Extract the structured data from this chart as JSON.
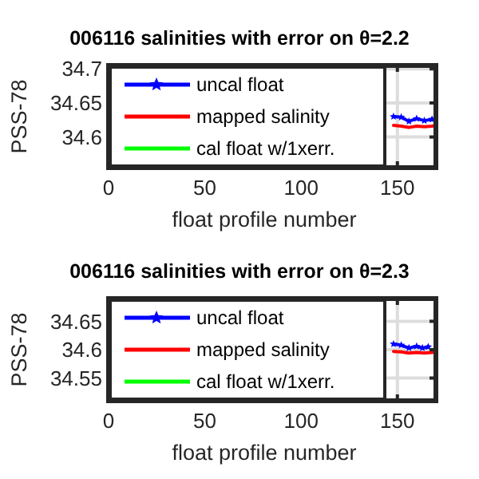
{
  "chart_data": [
    {
      "type": "line",
      "title": "006116 salinities with error on θ=2.2",
      "xlabel": "float profile number",
      "ylabel": "PSS-78",
      "xlim": [
        0,
        170
      ],
      "ylim": [
        34.555,
        34.705
      ],
      "xticks": [
        0,
        50,
        100,
        150
      ],
      "yticks": [
        34.6,
        34.65,
        34.7
      ],
      "grid": true,
      "legend": "left",
      "series": [
        {
          "name": "uncal float",
          "color": "#0000ff",
          "marker": "star",
          "x": [
            148,
            152,
            156,
            160,
            164,
            168
          ],
          "values": [
            34.63,
            34.629,
            34.623,
            34.627,
            34.624,
            34.626
          ]
        },
        {
          "name": "mapped salinity",
          "color": "#ff0000",
          "x": [
            148,
            152,
            156,
            160,
            164,
            168,
            170
          ],
          "values": [
            34.617,
            34.616,
            34.614,
            34.616,
            34.615,
            34.616,
            34.617
          ]
        },
        {
          "name": "cal float w/1xerr.",
          "color": "#00ff00"
        }
      ]
    },
    {
      "type": "line",
      "title": "006116 salinities with error on θ=2.3",
      "xlabel": "float profile number",
      "ylabel": "PSS-78",
      "xlim": [
        0,
        170
      ],
      "ylim": [
        34.51,
        34.69
      ],
      "xticks": [
        0,
        50,
        100,
        150
      ],
      "yticks": [
        34.55,
        34.6,
        34.65
      ],
      "grid": true,
      "legend": "left",
      "series": [
        {
          "name": "uncal float",
          "color": "#0000ff",
          "marker": "star",
          "x": [
            148,
            152,
            156,
            160,
            163,
            166
          ],
          "values": [
            34.61,
            34.608,
            34.603,
            34.606,
            34.603,
            34.605
          ]
        },
        {
          "name": "mapped salinity",
          "color": "#ff0000",
          "x": [
            148,
            152,
            156,
            160,
            164,
            168,
            170
          ],
          "values": [
            34.597,
            34.596,
            34.594,
            34.595,
            34.594,
            34.595,
            34.596
          ]
        },
        {
          "name": "cal float w/1xerr.",
          "color": "#00ff00"
        }
      ]
    }
  ]
}
